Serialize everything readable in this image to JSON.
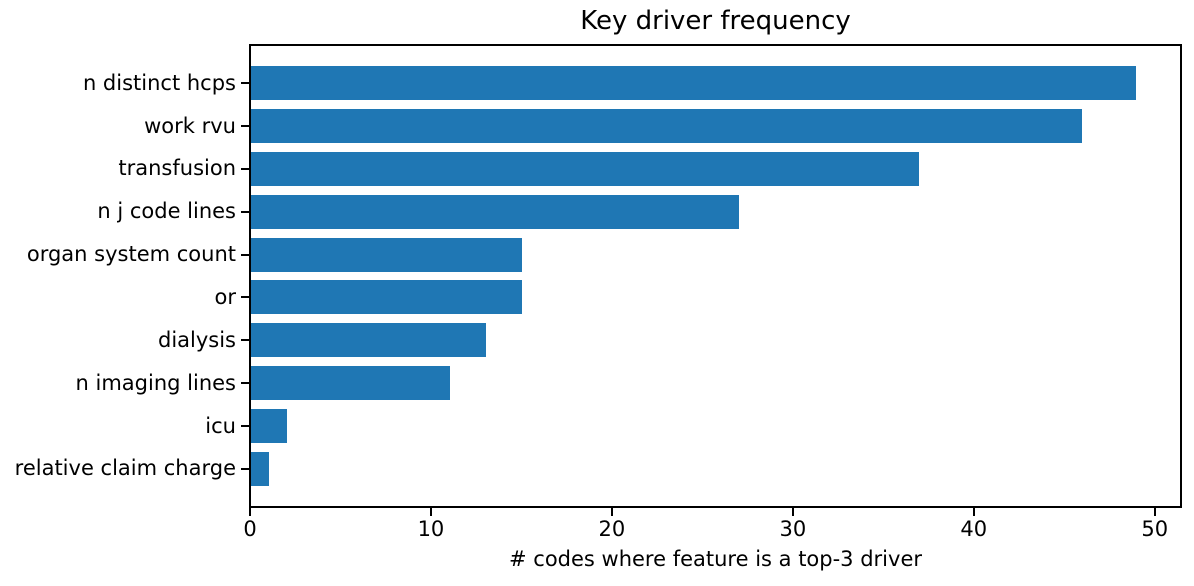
{
  "chart_data": {
    "type": "bar",
    "orientation": "horizontal",
    "title": "Key driver frequency",
    "xlabel": "# codes where feature is a top-3 driver",
    "ylabel": "",
    "categories": [
      "n distinct hcps",
      "work rvu",
      "transfusion",
      "n j code lines",
      "organ system count",
      "or",
      "dialysis",
      "n imaging lines",
      "icu",
      "relative claim charge"
    ],
    "values": [
      49,
      46,
      37,
      27,
      15,
      15,
      13,
      11,
      2,
      1
    ],
    "xticks": [
      0,
      10,
      20,
      30,
      40,
      50
    ],
    "xlim": [
      0,
      51.45
    ],
    "grid": false,
    "legend": null,
    "bar_color": "#1f77b4",
    "spine_color": "#000000",
    "text_color": "#000000",
    "background_color": "#ffffff"
  }
}
